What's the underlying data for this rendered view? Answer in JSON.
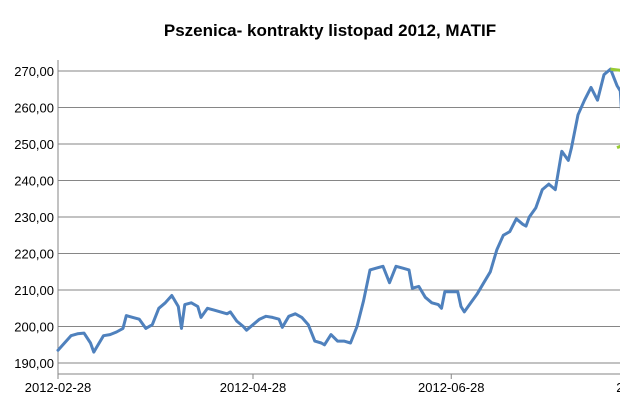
{
  "chart_data": {
    "type": "line",
    "title": "Pszenica- kontrakty listopad 2012, MATIF",
    "xlabel": "",
    "ylabel": "",
    "ylim": [
      187,
      273
    ],
    "grid": "horizontal",
    "legend": "none",
    "y_ticks": [
      {
        "value": 190,
        "label": "190,00"
      },
      {
        "value": 200,
        "label": "200,00"
      },
      {
        "value": 210,
        "label": "210,00"
      },
      {
        "value": 220,
        "label": "220,00"
      },
      {
        "value": 230,
        "label": "230,00"
      },
      {
        "value": 240,
        "label": "240,00"
      },
      {
        "value": 250,
        "label": "250,00"
      },
      {
        "value": 260,
        "label": "260,00"
      },
      {
        "value": 270,
        "label": "270,00"
      }
    ],
    "x_ticks": [
      {
        "date": "2012-02-28",
        "label": "2012-02-28"
      },
      {
        "date": "2012-04-28",
        "label": "2012-04-28"
      },
      {
        "date": "2012-06-28",
        "label": "2012-06-28"
      },
      {
        "date": "2012-08-28",
        "label": "2012-08-28"
      }
    ],
    "x_range": [
      "2012-02-28",
      "2012-09-09"
    ],
    "series": [
      {
        "color": "#4f81bd",
        "points": [
          [
            "2012-02-28",
            193.5
          ],
          [
            "2012-03-01",
            195.5
          ],
          [
            "2012-03-03",
            197.5
          ],
          [
            "2012-03-05",
            198.0
          ],
          [
            "2012-03-07",
            198.2
          ],
          [
            "2012-03-09",
            195.5
          ],
          [
            "2012-03-10",
            193.0
          ],
          [
            "2012-03-11",
            194.5
          ],
          [
            "2012-03-13",
            197.5
          ],
          [
            "2012-03-15",
            197.8
          ],
          [
            "2012-03-17",
            198.5
          ],
          [
            "2012-03-19",
            199.5
          ],
          [
            "2012-03-20",
            203.0
          ],
          [
            "2012-03-22",
            202.5
          ],
          [
            "2012-03-24",
            202.0
          ],
          [
            "2012-03-26",
            199.5
          ],
          [
            "2012-03-28",
            200.5
          ],
          [
            "2012-03-30",
            205.0
          ],
          [
            "2012-04-01",
            206.5
          ],
          [
            "2012-04-03",
            208.5
          ],
          [
            "2012-04-05",
            205.5
          ],
          [
            "2012-04-06",
            199.5
          ],
          [
            "2012-04-07",
            206.0
          ],
          [
            "2012-04-09",
            206.5
          ],
          [
            "2012-04-11",
            205.5
          ],
          [
            "2012-04-12",
            202.5
          ],
          [
            "2012-04-14",
            205.0
          ],
          [
            "2012-04-16",
            204.5
          ],
          [
            "2012-04-18",
            204.0
          ],
          [
            "2012-04-20",
            203.5
          ],
          [
            "2012-04-21",
            204.0
          ],
          [
            "2012-04-23",
            201.5
          ],
          [
            "2012-04-25",
            200.0
          ],
          [
            "2012-04-26",
            199.0
          ],
          [
            "2012-04-28",
            200.5
          ],
          [
            "2012-04-30",
            202.0
          ],
          [
            "2012-05-02",
            202.8
          ],
          [
            "2012-05-04",
            202.5
          ],
          [
            "2012-05-06",
            202.0
          ],
          [
            "2012-05-07",
            199.8
          ],
          [
            "2012-05-09",
            202.8
          ],
          [
            "2012-05-11",
            203.5
          ],
          [
            "2012-05-13",
            202.5
          ],
          [
            "2012-05-15",
            200.5
          ],
          [
            "2012-05-17",
            196.0
          ],
          [
            "2012-05-19",
            195.5
          ],
          [
            "2012-05-20",
            195.0
          ],
          [
            "2012-05-22",
            197.8
          ],
          [
            "2012-05-24",
            196.0
          ],
          [
            "2012-05-26",
            196.0
          ],
          [
            "2012-05-28",
            195.5
          ],
          [
            "2012-05-30",
            200.0
          ],
          [
            "2012-06-01",
            207.0
          ],
          [
            "2012-06-03",
            215.5
          ],
          [
            "2012-06-05",
            216.0
          ],
          [
            "2012-06-07",
            216.5
          ],
          [
            "2012-06-09",
            212.0
          ],
          [
            "2012-06-11",
            216.5
          ],
          [
            "2012-06-13",
            216.0
          ],
          [
            "2012-06-15",
            215.5
          ],
          [
            "2012-06-16",
            210.5
          ],
          [
            "2012-06-18",
            211.0
          ],
          [
            "2012-06-20",
            208.0
          ],
          [
            "2012-06-22",
            206.5
          ],
          [
            "2012-06-24",
            206.0
          ],
          [
            "2012-06-25",
            205.0
          ],
          [
            "2012-06-26",
            209.5
          ],
          [
            "2012-06-28",
            209.5
          ],
          [
            "2012-06-30",
            209.5
          ],
          [
            "2012-07-01",
            205.5
          ],
          [
            "2012-07-02",
            204.0
          ],
          [
            "2012-07-04",
            206.5
          ],
          [
            "2012-07-06",
            209.0
          ],
          [
            "2012-07-08",
            212.0
          ],
          [
            "2012-07-10",
            215.0
          ],
          [
            "2012-07-12",
            221.0
          ],
          [
            "2012-07-14",
            225.0
          ],
          [
            "2012-07-16",
            226.0
          ],
          [
            "2012-07-18",
            229.5
          ],
          [
            "2012-07-20",
            228.0
          ],
          [
            "2012-07-21",
            227.5
          ],
          [
            "2012-07-22",
            230.0
          ],
          [
            "2012-07-24",
            232.5
          ],
          [
            "2012-07-26",
            237.5
          ],
          [
            "2012-07-28",
            239.0
          ],
          [
            "2012-07-30",
            237.5
          ],
          [
            "2012-08-01",
            248.0
          ],
          [
            "2012-08-03",
            245.5
          ],
          [
            "2012-08-04",
            249.0
          ],
          [
            "2012-08-06",
            258.0
          ],
          [
            "2012-08-08",
            262.0
          ],
          [
            "2012-08-10",
            265.5
          ],
          [
            "2012-08-12",
            262.0
          ],
          [
            "2012-08-14",
            269.0
          ],
          [
            "2012-08-16",
            270.5
          ],
          [
            "2012-08-18",
            266.0
          ],
          [
            "2012-08-19",
            264.5
          ],
          [
            "2012-08-20",
            250.0
          ],
          [
            "2012-08-21",
            260.5
          ],
          [
            "2012-08-22",
            255.5
          ],
          [
            "2012-08-24",
            258.5
          ],
          [
            "2012-08-26",
            262.0
          ],
          [
            "2012-08-28",
            255.5
          ],
          [
            "2012-08-30",
            262.5
          ],
          [
            "2012-09-01",
            261.5
          ],
          [
            "2012-09-03",
            260.0
          ],
          [
            "2012-09-05",
            265.5
          ],
          [
            "2012-09-07",
            262.5
          ],
          [
            "2012-09-09",
            255.5
          ]
        ]
      }
    ],
    "annotations": [
      {
        "type": "trendline",
        "color": "#99cc33",
        "from": [
          "2012-08-16",
          270.5
        ],
        "to": [
          "2012-09-09",
          268.0
        ]
      },
      {
        "type": "trendline",
        "color": "#99cc33",
        "from": [
          "2012-08-18",
          249.0
        ],
        "to": [
          "2012-09-09",
          256.5
        ]
      }
    ]
  }
}
